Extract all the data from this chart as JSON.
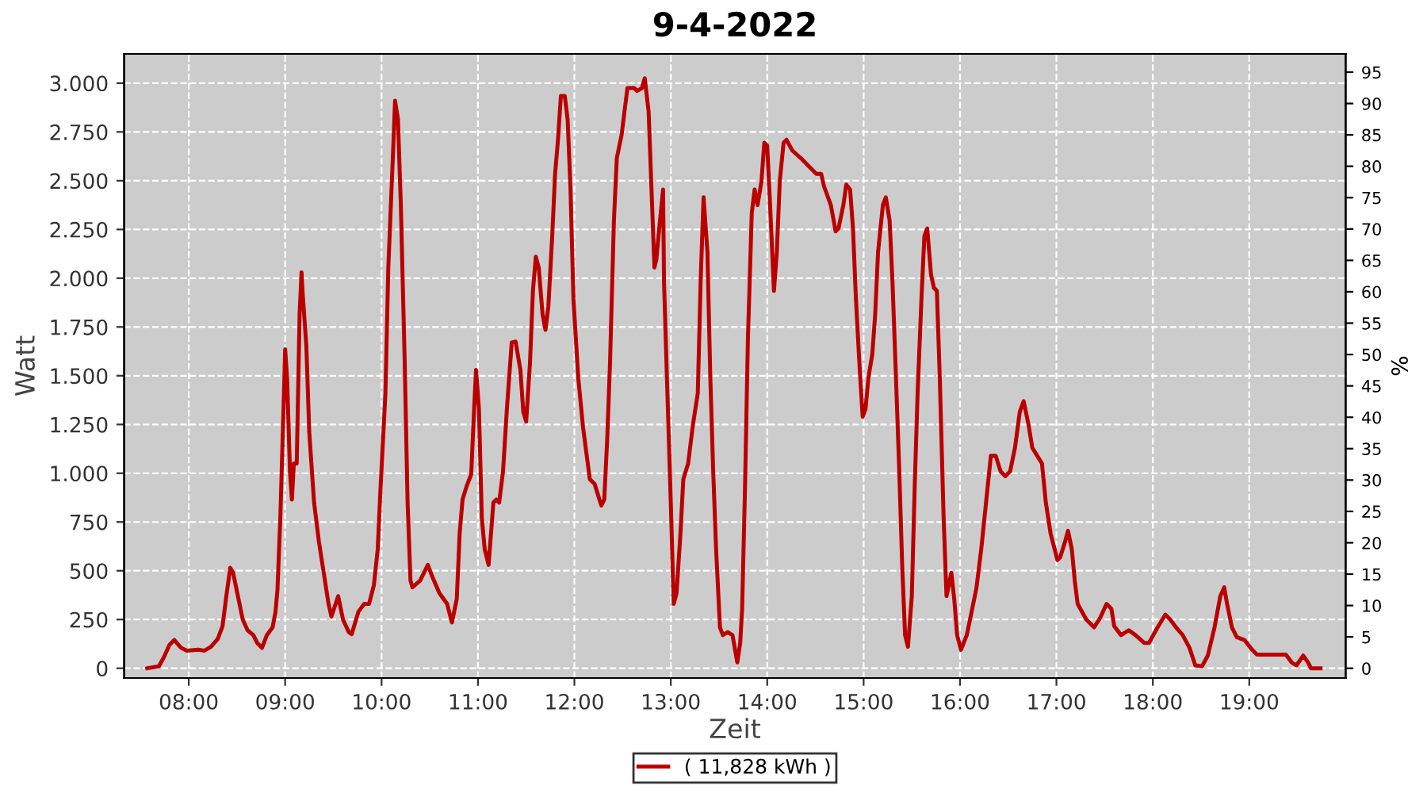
{
  "chart_data": {
    "type": "line",
    "title": "9-4-2022",
    "xlabel": "Zeit",
    "ylabel": "Watt",
    "y2label": "%",
    "x": [
      7.57,
      7.69,
      7.74,
      7.8,
      7.85,
      7.92,
      7.98,
      8.1,
      8.16,
      8.23,
      8.3,
      8.35,
      8.39,
      8.43,
      8.46,
      8.51,
      8.56,
      8.61,
      8.67,
      8.71,
      8.76,
      8.81,
      8.87,
      8.9,
      8.92,
      8.95,
      8.99,
      9.0,
      9.02,
      9.05,
      9.07,
      9.09,
      9.12,
      9.15,
      9.17,
      9.18,
      9.22,
      9.25,
      9.3,
      9.35,
      9.4,
      9.45,
      9.48,
      9.55,
      9.6,
      9.66,
      9.69,
      9.76,
      9.82,
      9.87,
      9.92,
      9.96,
      9.99,
      10.04,
      10.07,
      10.12,
      10.14,
      10.17,
      10.2,
      10.24,
      10.27,
      10.3,
      10.32,
      10.4,
      10.48,
      10.53,
      10.6,
      10.68,
      10.73,
      10.78,
      10.81,
      10.84,
      10.88,
      10.93,
      10.96,
      10.98,
      11.01,
      11.04,
      11.07,
      11.11,
      11.16,
      11.19,
      11.22,
      11.26,
      11.3,
      11.35,
      11.39,
      11.44,
      11.47,
      11.5,
      11.54,
      11.57,
      11.6,
      11.63,
      11.67,
      11.7,
      11.73,
      11.77,
      11.8,
      11.83,
      11.86,
      11.9,
      11.93,
      11.96,
      11.99,
      12.04,
      12.09,
      12.16,
      12.21,
      12.26,
      12.28,
      12.31,
      12.34,
      12.37,
      12.41,
      12.44,
      12.49,
      12.55,
      12.62,
      12.65,
      12.7,
      12.73,
      12.77,
      12.8,
      12.83,
      12.85,
      12.88,
      12.92,
      12.93,
      12.96,
      13.0,
      13.03,
      13.06,
      13.1,
      13.13,
      13.18,
      13.23,
      13.28,
      13.31,
      13.34,
      13.38,
      13.41,
      13.44,
      13.47,
      13.51,
      13.54,
      13.59,
      13.64,
      13.69,
      13.72,
      13.74,
      13.77,
      13.8,
      13.84,
      13.87,
      13.9,
      13.94,
      13.97,
      14.0,
      14.03,
      14.07,
      14.1,
      14.13,
      14.17,
      14.2,
      14.26,
      14.35,
      14.43,
      14.51,
      14.56,
      14.59,
      14.66,
      14.71,
      14.74,
      14.79,
      14.82,
      14.86,
      14.89,
      14.92,
      14.96,
      14.99,
      15.02,
      15.05,
      15.09,
      15.12,
      15.15,
      15.2,
      15.23,
      15.27,
      15.3,
      15.33,
      15.37,
      15.4,
      15.43,
      15.46,
      15.5,
      15.53,
      15.56,
      15.6,
      15.63,
      15.66,
      15.7,
      15.73,
      15.76,
      15.79,
      15.83,
      15.86,
      15.91,
      15.94,
      15.97,
      16.01,
      16.07,
      16.12,
      16.17,
      16.22,
      16.27,
      16.32,
      16.37,
      16.42,
      16.47,
      16.52,
      16.57,
      16.62,
      16.66,
      16.71,
      16.75,
      16.8,
      16.85,
      16.89,
      16.94,
      17.01,
      17.04,
      17.09,
      17.12,
      17.16,
      17.19,
      17.22,
      17.31,
      17.39,
      17.45,
      17.52,
      17.57,
      17.6,
      17.67,
      17.75,
      17.82,
      17.91,
      17.96,
      18.05,
      18.13,
      18.18,
      18.24,
      18.31,
      18.38,
      18.44,
      18.51,
      18.57,
      18.64,
      18.7,
      18.74,
      18.77,
      18.82,
      18.87,
      18.95,
      19.03,
      19.08,
      19.28,
      19.38,
      19.44,
      19.49,
      19.56,
      19.61,
      19.64,
      19.74
    ],
    "series": [
      {
        "name": "( 11,828 kWh )",
        "color": "#bb0000",
        "values": [
          0,
          10,
          55,
          120,
          145,
          105,
          90,
          95,
          90,
          110,
          150,
          215,
          370,
          515,
          490,
          370,
          250,
          195,
          170,
          130,
          105,
          170,
          210,
          290,
          400,
          770,
          1450,
          1635,
          1490,
          1010,
          865,
          1050,
          1050,
          1815,
          2030,
          1935,
          1650,
          1210,
          850,
          650,
          490,
          330,
          265,
          370,
          250,
          185,
          175,
          290,
          330,
          330,
          425,
          610,
          930,
          1410,
          2055,
          2655,
          2910,
          2815,
          2375,
          1570,
          850,
          450,
          415,
          450,
          530,
          465,
          385,
          330,
          235,
          355,
          690,
          865,
          930,
          995,
          1330,
          1530,
          1330,
          770,
          610,
          530,
          850,
          865,
          850,
          1010,
          1330,
          1670,
          1675,
          1530,
          1315,
          1265,
          1570,
          1935,
          2110,
          2055,
          1815,
          1735,
          1855,
          2215,
          2535,
          2710,
          2935,
          2935,
          2815,
          2455,
          1895,
          1490,
          1235,
          970,
          945,
          865,
          835,
          865,
          1170,
          1570,
          2295,
          2615,
          2735,
          2975,
          2975,
          2960,
          2975,
          3025,
          2855,
          2455,
          2055,
          2095,
          2255,
          2455,
          1975,
          1490,
          850,
          330,
          385,
          690,
          970,
          1050,
          1250,
          1410,
          1990,
          2415,
          2135,
          1490,
          1010,
          610,
          210,
          170,
          185,
          170,
          30,
          130,
          305,
          930,
          1690,
          2335,
          2455,
          2375,
          2495,
          2695,
          2680,
          2375,
          1935,
          2135,
          2495,
          2695,
          2710,
          2655,
          2615,
          2575,
          2535,
          2535,
          2470,
          2375,
          2240,
          2255,
          2375,
          2480,
          2455,
          2255,
          1895,
          1530,
          1290,
          1330,
          1490,
          1610,
          1815,
          2135,
          2375,
          2415,
          2295,
          1975,
          1570,
          1010,
          530,
          170,
          110,
          370,
          930,
          1410,
          1895,
          2215,
          2255,
          2015,
          1950,
          1935,
          1490,
          770,
          370,
          490,
          355,
          170,
          95,
          170,
          290,
          410,
          610,
          850,
          1090,
          1090,
          1010,
          985,
          1010,
          1130,
          1315,
          1370,
          1250,
          1130,
          1090,
          1050,
          850,
          690,
          555,
          570,
          650,
          705,
          610,
          450,
          330,
          250,
          210,
          255,
          330,
          305,
          215,
          170,
          195,
          170,
          130,
          130,
          210,
          275,
          250,
          210,
          170,
          105,
          15,
          10,
          65,
          210,
          370,
          415,
          330,
          210,
          160,
          145,
          95,
          70,
          70,
          70,
          30,
          15,
          65,
          30,
          0,
          0
        ]
      }
    ],
    "xlim": [
      7.33,
      20.0
    ],
    "xticks": [
      {
        "value": 8,
        "label": "08:00"
      },
      {
        "value": 9,
        "label": "09:00"
      },
      {
        "value": 10,
        "label": "10:00"
      },
      {
        "value": 11,
        "label": "11:00"
      },
      {
        "value": 12,
        "label": "12:00"
      },
      {
        "value": 13,
        "label": "13:00"
      },
      {
        "value": 14,
        "label": "14:00"
      },
      {
        "value": 15,
        "label": "15:00"
      },
      {
        "value": 16,
        "label": "16:00"
      },
      {
        "value": 17,
        "label": "17:00"
      },
      {
        "value": 18,
        "label": "18:00"
      },
      {
        "value": 19,
        "label": "19:00"
      }
    ],
    "ylim": [
      -50,
      3150
    ],
    "yticks": [
      0,
      250,
      500,
      750,
      {
        "value": 1000,
        "label": "1.000"
      },
      {
        "value": 1250,
        "label": "1.250"
      },
      {
        "value": 1500,
        "label": "1.500"
      },
      {
        "value": 1750,
        "label": "1.750"
      },
      {
        "value": 2000,
        "label": "2.000"
      },
      {
        "value": 2250,
        "label": "2.250"
      },
      {
        "value": 2500,
        "label": "2.500"
      },
      {
        "value": 2750,
        "label": "2.750"
      },
      {
        "value": 3000,
        "label": "3.000"
      }
    ],
    "y2lim": [
      -1.55,
      97.9
    ],
    "y2ticks": [
      0,
      5,
      10,
      15,
      20,
      25,
      30,
      35,
      40,
      45,
      50,
      55,
      60,
      65,
      70,
      75,
      80,
      85,
      90,
      95
    ],
    "grid": true,
    "legend": "bottom",
    "line_style": "solid",
    "marker": "none"
  }
}
